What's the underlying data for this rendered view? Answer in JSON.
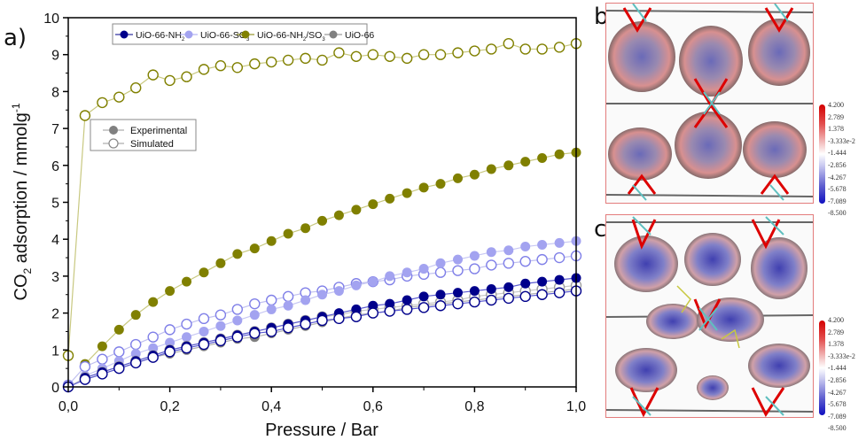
{
  "panels": {
    "a_label": "a)",
    "b_label": "b)",
    "c_label": "c)"
  },
  "colorbar": {
    "ticks": [
      "4.200",
      "2.789",
      "1.378",
      "-3.333e-2",
      "-1.444",
      "-2.856",
      "-4.267",
      "-5.678",
      "-7.089",
      "-8.500"
    ]
  },
  "chart_data": {
    "type": "line",
    "title": "",
    "xlabel": "Pressure / Bar",
    "ylabel_main": "CO",
    "ylabel_sub": "2",
    "ylabel_rest": " adsorption / mmolg",
    "ylabel_sup": "-1",
    "xlim": [
      0,
      1.0
    ],
    "ylim": [
      0,
      10
    ],
    "xticks": [
      0,
      0.2,
      0.4,
      0.6,
      0.8,
      1.0
    ],
    "xtick_labels": [
      "0,0",
      "0,2",
      "0,4",
      "0,6",
      "0,8",
      "1,0"
    ],
    "yticks": [
      0,
      1,
      2,
      3,
      4,
      5,
      6,
      7,
      8,
      9,
      10
    ],
    "ytick_labels": [
      "0",
      "1",
      "2",
      "3",
      "4",
      "5",
      "6",
      "7",
      "8",
      "9",
      "10"
    ],
    "grid": false,
    "legend_series": {
      "placement": "top",
      "entries": [
        {
          "name": "UiO-66-NH",
          "sub": "2",
          "rest": "",
          "color": "#00008b"
        },
        {
          "name": "UiO-66-SO",
          "sub": "3",
          "rest": "",
          "color": "#a3a3f0"
        },
        {
          "name": "UiO-66-NH",
          "sub": "2",
          "rest": "/SO",
          "sub2": "3",
          "color": "#808000"
        },
        {
          "name": "UiO-66",
          "sub": "",
          "rest": "",
          "color": "#808080"
        }
      ]
    },
    "legend_style": {
      "placement": "upper-left",
      "entries": [
        {
          "name": "Experimental",
          "marker": "filled"
        },
        {
          "name": "Simulated",
          "marker": "open"
        }
      ]
    },
    "series": [
      {
        "name": "UiO-66-NH2/SO3 Simulated",
        "color": "#808000",
        "line": "#c8c880",
        "marker": "open",
        "x": [
          0,
          0.033,
          0.067,
          0.1,
          0.133,
          0.167,
          0.2,
          0.233,
          0.267,
          0.3,
          0.333,
          0.367,
          0.4,
          0.433,
          0.467,
          0.5,
          0.533,
          0.567,
          0.6,
          0.633,
          0.667,
          0.7,
          0.733,
          0.767,
          0.8,
          0.833,
          0.867,
          0.9,
          0.933,
          0.967,
          1.0
        ],
        "y": [
          0.85,
          7.35,
          7.7,
          7.85,
          8.1,
          8.45,
          8.3,
          8.4,
          8.6,
          8.7,
          8.65,
          8.75,
          8.8,
          8.85,
          8.9,
          8.85,
          9.05,
          8.95,
          9.0,
          8.95,
          8.9,
          9.0,
          9.0,
          9.05,
          9.1,
          9.15,
          9.3,
          9.15,
          9.15,
          9.2,
          9.3
        ]
      },
      {
        "name": "UiO-66-NH2/SO3 Experimental",
        "color": "#808000",
        "line": "#c8c880",
        "marker": "filled",
        "x": [
          0.033,
          0.067,
          0.1,
          0.133,
          0.167,
          0.2,
          0.233,
          0.267,
          0.3,
          0.333,
          0.367,
          0.4,
          0.433,
          0.467,
          0.5,
          0.533,
          0.567,
          0.6,
          0.633,
          0.667,
          0.7,
          0.733,
          0.767,
          0.8,
          0.833,
          0.867,
          0.9,
          0.933,
          0.967,
          1.0
        ],
        "y": [
          0.62,
          1.1,
          1.55,
          1.95,
          2.3,
          2.6,
          2.85,
          3.1,
          3.35,
          3.6,
          3.75,
          3.95,
          4.15,
          4.3,
          4.5,
          4.65,
          4.8,
          4.95,
          5.1,
          5.25,
          5.4,
          5.5,
          5.65,
          5.75,
          5.9,
          6.0,
          6.1,
          6.2,
          6.3,
          6.35
        ]
      },
      {
        "name": "UiO-66-SO3 Simulated",
        "color": "#8080e8",
        "line": "#c0c0f0",
        "marker": "open",
        "x": [
          0,
          0.033,
          0.067,
          0.1,
          0.133,
          0.167,
          0.2,
          0.233,
          0.267,
          0.3,
          0.333,
          0.367,
          0.4,
          0.433,
          0.467,
          0.5,
          0.533,
          0.567,
          0.6,
          0.633,
          0.667,
          0.7,
          0.733,
          0.767,
          0.8,
          0.833,
          0.867,
          0.9,
          0.933,
          0.967,
          1.0
        ],
        "y": [
          0.05,
          0.55,
          0.75,
          0.95,
          1.15,
          1.35,
          1.55,
          1.7,
          1.85,
          1.95,
          2.1,
          2.25,
          2.35,
          2.45,
          2.55,
          2.6,
          2.7,
          2.8,
          2.85,
          2.9,
          3.0,
          3.05,
          3.1,
          3.15,
          3.2,
          3.3,
          3.35,
          3.4,
          3.45,
          3.5,
          3.55
        ]
      },
      {
        "name": "UiO-66-SO3 Experimental",
        "color": "#a3a3f0",
        "line": "#c8c8f4",
        "marker": "filled",
        "x": [
          0.033,
          0.067,
          0.1,
          0.133,
          0.167,
          0.2,
          0.233,
          0.267,
          0.3,
          0.333,
          0.367,
          0.4,
          0.433,
          0.467,
          0.5,
          0.533,
          0.567,
          0.6,
          0.633,
          0.667,
          0.7,
          0.733,
          0.767,
          0.8,
          0.833,
          0.867,
          0.9,
          0.933,
          0.967,
          1.0
        ],
        "y": [
          0.3,
          0.5,
          0.7,
          0.9,
          1.05,
          1.2,
          1.35,
          1.5,
          1.65,
          1.8,
          1.95,
          2.1,
          2.2,
          2.35,
          2.5,
          2.6,
          2.75,
          2.85,
          3.0,
          3.1,
          3.2,
          3.35,
          3.45,
          3.55,
          3.65,
          3.7,
          3.8,
          3.85,
          3.9,
          3.95
        ]
      },
      {
        "name": "UiO-66 Experimental",
        "color": "#808080",
        "line": "#b0b0b0",
        "marker": "filled",
        "x": [
          0.033,
          0.067,
          0.1,
          0.133,
          0.167,
          0.2,
          0.233,
          0.267,
          0.3,
          0.333,
          0.367,
          0.4,
          0.433,
          0.467,
          0.5,
          0.533,
          0.567,
          0.6,
          0.633,
          0.667,
          0.7,
          0.733,
          0.767,
          0.8,
          0.833,
          0.867,
          0.9,
          0.933,
          0.967,
          1.0
        ],
        "y": [
          0.2,
          0.35,
          0.5,
          0.65,
          0.8,
          0.9,
          1.0,
          1.1,
          1.2,
          1.3,
          1.35,
          1.45,
          1.55,
          1.65,
          1.75,
          1.85,
          1.95,
          2.0,
          2.05,
          2.15,
          2.2,
          2.25,
          2.3,
          2.35,
          2.4,
          2.45,
          2.5,
          2.55,
          2.6,
          2.65
        ]
      },
      {
        "name": "UiO-66 Simulated",
        "color": "#a0a0a0",
        "line": "#c8c8c8",
        "marker": "open",
        "x": [
          0,
          0.033,
          0.067,
          0.1,
          0.133,
          0.167,
          0.2,
          0.233,
          0.267,
          0.3,
          0.333,
          0.367,
          0.4,
          0.433,
          0.467,
          0.5,
          0.533,
          0.567,
          0.6,
          0.633,
          0.667,
          0.7,
          0.733,
          0.767,
          0.8,
          0.833,
          0.867,
          0.9,
          0.933,
          0.967,
          1.0
        ],
        "y": [
          0.0,
          0.25,
          0.4,
          0.55,
          0.7,
          0.85,
          1.0,
          1.1,
          1.2,
          1.3,
          1.4,
          1.5,
          1.6,
          1.7,
          1.8,
          1.9,
          1.95,
          2.05,
          2.1,
          2.15,
          2.2,
          2.25,
          2.3,
          2.35,
          2.45,
          2.5,
          2.55,
          2.6,
          2.65,
          2.7,
          2.75
        ]
      },
      {
        "name": "UiO-66-NH2 Experimental",
        "color": "#00008b",
        "line": "#5a5ad0",
        "marker": "filled",
        "x": [
          0.033,
          0.067,
          0.1,
          0.133,
          0.167,
          0.2,
          0.233,
          0.267,
          0.3,
          0.333,
          0.367,
          0.4,
          0.433,
          0.467,
          0.5,
          0.533,
          0.567,
          0.6,
          0.633,
          0.667,
          0.7,
          0.733,
          0.767,
          0.8,
          0.833,
          0.867,
          0.9,
          0.933,
          0.967,
          1.0
        ],
        "y": [
          0.25,
          0.4,
          0.55,
          0.7,
          0.85,
          1.0,
          1.1,
          1.2,
          1.3,
          1.4,
          1.5,
          1.6,
          1.7,
          1.8,
          1.9,
          2.0,
          2.1,
          2.2,
          2.25,
          2.35,
          2.45,
          2.5,
          2.55,
          2.6,
          2.65,
          2.7,
          2.8,
          2.85,
          2.9,
          2.95
        ]
      },
      {
        "name": "UiO-66-NH2 Simulated",
        "color": "#00008b",
        "line": "#5a5ad0",
        "marker": "open",
        "x": [
          0,
          0.033,
          0.067,
          0.1,
          0.133,
          0.167,
          0.2,
          0.233,
          0.267,
          0.3,
          0.333,
          0.367,
          0.4,
          0.433,
          0.467,
          0.5,
          0.533,
          0.567,
          0.6,
          0.633,
          0.667,
          0.7,
          0.733,
          0.767,
          0.8,
          0.833,
          0.867,
          0.9,
          0.933,
          0.967,
          1.0
        ],
        "y": [
          0.0,
          0.2,
          0.35,
          0.5,
          0.65,
          0.8,
          0.95,
          1.05,
          1.15,
          1.25,
          1.35,
          1.45,
          1.5,
          1.6,
          1.7,
          1.8,
          1.85,
          1.9,
          2.0,
          2.05,
          2.1,
          2.15,
          2.2,
          2.25,
          2.3,
          2.35,
          2.4,
          2.45,
          2.5,
          2.55,
          2.6
        ]
      }
    ]
  }
}
